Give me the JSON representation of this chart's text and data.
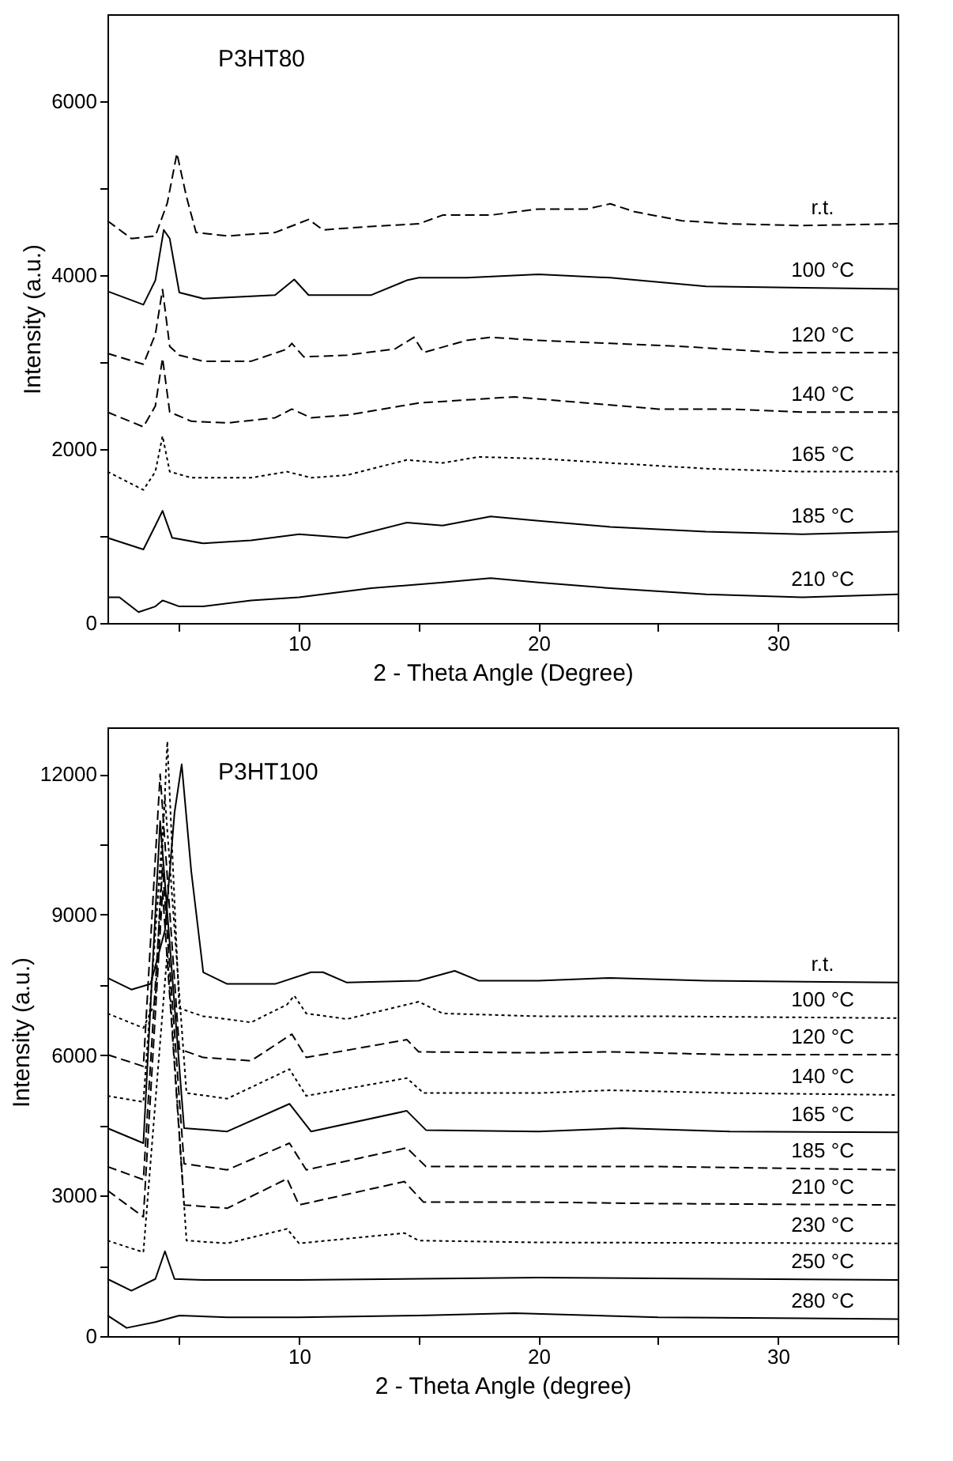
{
  "chart_data": [
    {
      "type": "line",
      "title": "P3HT80",
      "xlabel": "2 - Theta Angle (Degree)",
      "ylabel": "Intensity (a.u.)",
      "xlim": [
        2,
        35
      ],
      "xticks": [
        10,
        20,
        30,
        {
          "value": 5,
          "label": null
        },
        {
          "value": 15,
          "label": null
        },
        {
          "value": 25,
          "label": null
        },
        {
          "value": 35,
          "label": null
        }
      ],
      "ylim": [
        0,
        7000
      ],
      "yticks": [
        0,
        2000,
        4000,
        6000,
        {
          "value": 1000,
          "label": null
        },
        {
          "value": 3000,
          "label": null
        },
        {
          "value": 5000,
          "label": null
        }
      ],
      "grid": false,
      "marker": "none",
      "series": [
        {
          "name": "r.t.",
          "color": "#000000",
          "line_style": "dashed",
          "x": [
            2,
            3,
            4,
            4.5,
            4.9,
            5.3,
            5.7,
            7,
            9,
            10.4,
            11,
            13,
            15,
            16,
            18,
            20,
            22,
            23,
            24,
            26,
            28,
            31,
            35
          ],
          "values": [
            4625,
            4420,
            4450,
            4830,
            5400,
            4900,
            4490,
            4450,
            4490,
            4640,
            4520,
            4560,
            4590,
            4690,
            4690,
            4760,
            4760,
            4820,
            4730,
            4625,
            4590,
            4570,
            4590
          ]
        },
        {
          "name": "100 °C",
          "color": "#000000",
          "line_style": "solid",
          "x": [
            2,
            3.5,
            4,
            4.35,
            4.6,
            5,
            6,
            9,
            9.8,
            10.4,
            13,
            14.5,
            15,
            17,
            20,
            23,
            27,
            35
          ],
          "values": [
            3815,
            3660,
            3940,
            4520,
            4420,
            3800,
            3730,
            3770,
            3950,
            3770,
            3770,
            3940,
            3970,
            3970,
            4010,
            3970,
            3870,
            3840
          ]
        },
        {
          "name": "120 °C",
          "color": "#000000",
          "line_style": "dashed",
          "x": [
            2,
            3.5,
            4,
            4.3,
            4.6,
            5,
            6,
            8,
            9.5,
            9.7,
            10.2,
            12,
            14,
            14.8,
            15.2,
            17,
            18,
            20,
            23,
            26,
            30,
            35
          ],
          "values": [
            3100,
            2975,
            3320,
            3835,
            3180,
            3080,
            3010,
            3010,
            3150,
            3215,
            3060,
            3080,
            3150,
            3285,
            3110,
            3250,
            3285,
            3250,
            3215,
            3180,
            3110,
            3110
          ]
        },
        {
          "name": "140 °C",
          "color": "#000000",
          "line_style": "dashed",
          "x": [
            2,
            3.5,
            4,
            4.3,
            4.6,
            5.5,
            7,
            9,
            9.7,
            10.5,
            12,
            15,
            17,
            19,
            22,
            25,
            28,
            31,
            35
          ],
          "values": [
            2425,
            2255,
            2495,
            3045,
            2425,
            2320,
            2300,
            2360,
            2460,
            2360,
            2390,
            2530,
            2565,
            2600,
            2530,
            2460,
            2460,
            2425,
            2425
          ]
        },
        {
          "name": "165 °C",
          "color": "#000000",
          "line_style": "dotted",
          "x": [
            2,
            3.5,
            4,
            4.3,
            4.6,
            5.5,
            8,
            9.5,
            10.5,
            12,
            14.5,
            16,
            17.5,
            20,
            23,
            27,
            31,
            35
          ],
          "values": [
            1740,
            1530,
            1740,
            2150,
            1740,
            1670,
            1670,
            1740,
            1670,
            1700,
            1875,
            1840,
            1910,
            1890,
            1840,
            1775,
            1740,
            1740
          ]
        },
        {
          "name": "185 °C",
          "color": "#000000",
          "line_style": "solid",
          "x": [
            2,
            3.5,
            4,
            4.3,
            4.7,
            6,
            8,
            10,
            12,
            14.5,
            16,
            18,
            20,
            23,
            27,
            31,
            35
          ],
          "values": [
            980,
            845,
            1120,
            1290,
            980,
            915,
            950,
            1020,
            980,
            1155,
            1120,
            1225,
            1175,
            1105,
            1050,
            1020,
            1050
          ]
        },
        {
          "name": "210 °C",
          "color": "#000000",
          "line_style": "solid",
          "x": [
            2,
            2.5,
            3.3,
            4,
            4.3,
            5,
            6,
            8,
            10,
            13,
            16,
            18,
            20,
            23,
            27,
            31,
            35
          ],
          "values": [
            295,
            295,
            125,
            190,
            260,
            190,
            190,
            260,
            295,
            400,
            465,
            515,
            465,
            400,
            330,
            295,
            330
          ]
        }
      ]
    },
    {
      "type": "line",
      "title": "P3HT100",
      "xlabel": "2 - Theta Angle (degree)",
      "ylabel": "Intensity (a.u.)",
      "xlim": [
        2,
        35
      ],
      "xticks": [
        10,
        20,
        30,
        {
          "value": 5,
          "label": null
        },
        {
          "value": 15,
          "label": null
        },
        {
          "value": 25,
          "label": null
        },
        {
          "value": 35,
          "label": null
        }
      ],
      "ylim": [
        0,
        13000
      ],
      "yticks": [
        0,
        3000,
        6000,
        9000,
        12000,
        {
          "value": 1500,
          "label": null
        },
        {
          "value": 4500,
          "label": null
        },
        {
          "value": 7500,
          "label": null
        },
        {
          "value": 10500,
          "label": null
        }
      ],
      "grid": false,
      "marker": "none",
      "series": [
        {
          "name": "r.t.",
          "color": "#000000",
          "line_style": "solid",
          "x": [
            2,
            3,
            3.8,
            4.4,
            4.8,
            5.1,
            5.5,
            6,
            7,
            9,
            10.5,
            11,
            12,
            15,
            16.5,
            17.5,
            20,
            23,
            27,
            35
          ],
          "values": [
            7650,
            7400,
            7520,
            8660,
            11180,
            12210,
            9920,
            7770,
            7520,
            7520,
            7770,
            7770,
            7550,
            7590,
            7800,
            7590,
            7590,
            7650,
            7590,
            7550
          ]
        },
        {
          "name": "100 °C",
          "color": "#000000",
          "line_style": "dotted",
          "x": [
            2,
            3.5,
            4,
            4.5,
            5,
            6,
            8,
            9.5,
            9.8,
            10.3,
            12,
            15,
            16,
            20,
            25,
            35
          ],
          "values": [
            6890,
            6580,
            7140,
            12700,
            7000,
            6830,
            6700,
            7080,
            7270,
            6890,
            6770,
            7140,
            6890,
            6830,
            6830,
            6790
          ]
        },
        {
          "name": "120 °C",
          "color": "#000000",
          "line_style": "dashed",
          "x": [
            2,
            3.5,
            4.2,
            5,
            6,
            8,
            9.7,
            10.3,
            14.5,
            15,
            20,
            23,
            28,
            35
          ],
          "values": [
            6010,
            5760,
            12000,
            6130,
            5950,
            5880,
            6450,
            5950,
            6330,
            6070,
            6050,
            6070,
            6010,
            6010
          ]
        },
        {
          "name": "140 °C",
          "color": "#000000",
          "line_style": "dotted",
          "x": [
            2,
            3.5,
            4.4,
            5.3,
            7,
            9.6,
            10.3,
            14.5,
            15.2,
            20,
            23,
            28,
            35
          ],
          "values": [
            5130,
            5000,
            11500,
            5190,
            5070,
            5700,
            5130,
            5510,
            5190,
            5190,
            5250,
            5190,
            5150
          ]
        },
        {
          "name": "165 °C",
          "color": "#000000",
          "line_style": "solid",
          "x": [
            2,
            3.5,
            4.2,
            5.2,
            7,
            9.6,
            10.5,
            14.5,
            15.3,
            20,
            23.5,
            28,
            35
          ],
          "values": [
            4440,
            4120,
            11000,
            4440,
            4370,
            4960,
            4370,
            4810,
            4400,
            4370,
            4440,
            4370,
            4350
          ]
        },
        {
          "name": "185 °C",
          "color": "#000000",
          "line_style": "dashed",
          "x": [
            2,
            3.5,
            4.3,
            5.2,
            7,
            9.6,
            10.3,
            14.5,
            15.3,
            20,
            25,
            35
          ],
          "values": [
            3620,
            3340,
            10000,
            3680,
            3550,
            4120,
            3550,
            4020,
            3620,
            3620,
            3620,
            3550
          ]
        },
        {
          "name": "210 °C",
          "color": "#000000",
          "line_style": "dashed",
          "x": [
            2,
            3.5,
            4.3,
            5.2,
            7,
            9.5,
            10,
            14.4,
            15.2,
            20,
            25,
            35
          ],
          "values": [
            3110,
            2545,
            9500,
            2800,
            2730,
            3360,
            2800,
            3300,
            2860,
            2860,
            2830,
            2800
          ]
        },
        {
          "name": "230 °C",
          "color": "#000000",
          "line_style": "dotted",
          "x": [
            2,
            3.5,
            4.5,
            5.3,
            7,
            9.5,
            10,
            14.4,
            15,
            20,
            35
          ],
          "values": [
            2040,
            1790,
            8200,
            2040,
            1980,
            2290,
            1980,
            2200,
            2040,
            2000,
            1980
          ]
        },
        {
          "name": "250 °C",
          "color": "#000000",
          "line_style": "solid",
          "x": [
            2,
            3,
            4,
            4.4,
            4.8,
            6,
            10,
            20,
            35
          ],
          "values": [
            1220,
            970,
            1220,
            1810,
            1220,
            1200,
            1200,
            1250,
            1200
          ]
        },
        {
          "name": "280 °C",
          "color": "#000000",
          "line_style": "solid",
          "x": [
            2,
            2.8,
            4,
            5,
            7,
            10,
            15,
            19,
            25,
            35
          ],
          "values": [
            440,
            175,
            300,
            440,
            400,
            400,
            440,
            490,
            400,
            365
          ]
        }
      ]
    }
  ]
}
